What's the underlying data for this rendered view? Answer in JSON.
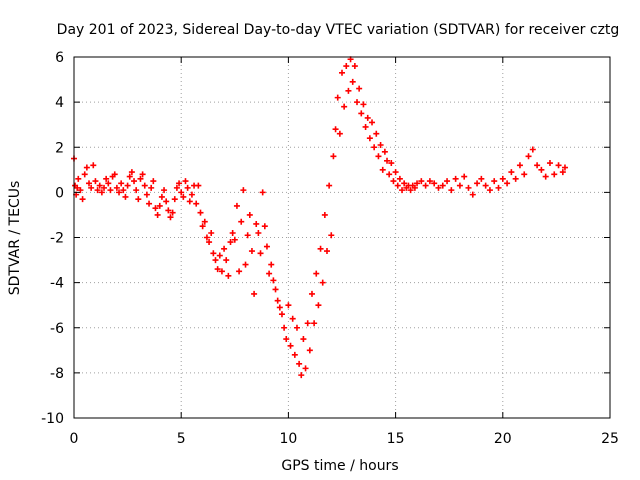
{
  "chart_data": {
    "type": "scatter",
    "title": "Day 201 of 2023, Sidereal Day-to-day VTEC variation (SDTVAR) for receiver cztg",
    "xlabel": "GPS time / hours",
    "ylabel": "SDTVAR / TECUs",
    "xlim": [
      0,
      25
    ],
    "ylim": [
      -10,
      6
    ],
    "xticks": [
      0,
      5,
      10,
      15,
      20,
      25
    ],
    "yticks": [
      -10,
      -8,
      -6,
      -4,
      -2,
      0,
      2,
      4,
      6
    ],
    "xtick_labels": [
      "0",
      "5",
      "10",
      "15",
      "20",
      "25"
    ],
    "ytick_labels": [
      "-10",
      "-8",
      "-6",
      "-4",
      "-2",
      "0",
      "2",
      "4",
      "6"
    ],
    "grid": true,
    "legend": "none",
    "marker": "plus",
    "color": "#ff0000",
    "series": [
      {
        "name": "SDTVAR",
        "points": [
          [
            0,
            1.5
          ],
          [
            0.05,
            0.3
          ],
          [
            0.1,
            -0.1
          ],
          [
            0.15,
            0.2
          ],
          [
            0.2,
            0.6
          ],
          [
            0.3,
            0.1
          ],
          [
            0.4,
            -0.3
          ],
          [
            0.5,
            0.8
          ],
          [
            0.6,
            1.1
          ],
          [
            0.7,
            0.4
          ],
          [
            0.8,
            0.2
          ],
          [
            0.9,
            1.2
          ],
          [
            1.0,
            0.5
          ],
          [
            1.1,
            0.1
          ],
          [
            1.2,
            0.3
          ],
          [
            1.3,
            0.0
          ],
          [
            1.4,
            0.2
          ],
          [
            1.5,
            0.6
          ],
          [
            1.6,
            0.4
          ],
          [
            1.7,
            0.1
          ],
          [
            1.8,
            0.7
          ],
          [
            1.9,
            0.8
          ],
          [
            2.0,
            0.2
          ],
          [
            2.1,
            0.0
          ],
          [
            2.2,
            0.4
          ],
          [
            2.3,
            0.1
          ],
          [
            2.4,
            -0.2
          ],
          [
            2.5,
            0.3
          ],
          [
            2.6,
            0.7
          ],
          [
            2.7,
            0.9
          ],
          [
            2.8,
            0.5
          ],
          [
            2.9,
            0.1
          ],
          [
            3.0,
            -0.3
          ],
          [
            3.1,
            0.6
          ],
          [
            3.2,
            0.8
          ],
          [
            3.3,
            0.3
          ],
          [
            3.4,
            -0.1
          ],
          [
            3.5,
            -0.5
          ],
          [
            3.6,
            0.2
          ],
          [
            3.7,
            0.5
          ],
          [
            3.8,
            -0.7
          ],
          [
            3.9,
            -1.0
          ],
          [
            4.0,
            -0.6
          ],
          [
            4.1,
            -0.2
          ],
          [
            4.2,
            0.1
          ],
          [
            4.3,
            -0.4
          ],
          [
            4.4,
            -0.8
          ],
          [
            4.5,
            -1.1
          ],
          [
            4.6,
            -0.9
          ],
          [
            4.7,
            -0.3
          ],
          [
            4.8,
            0.2
          ],
          [
            4.9,
            0.4
          ],
          [
            5.0,
            0.0
          ],
          [
            5.1,
            -0.2
          ],
          [
            5.2,
            0.5
          ],
          [
            5.3,
            0.2
          ],
          [
            5.4,
            -0.4
          ],
          [
            5.5,
            -0.1
          ],
          [
            5.6,
            0.3
          ],
          [
            5.7,
            -0.5
          ],
          [
            5.8,
            0.3
          ],
          [
            5.9,
            -0.9
          ],
          [
            6.0,
            -1.5
          ],
          [
            6.1,
            -1.3
          ],
          [
            6.2,
            -2.0
          ],
          [
            6.3,
            -2.2
          ],
          [
            6.4,
            -1.8
          ],
          [
            6.5,
            -2.7
          ],
          [
            6.6,
            -3.0
          ],
          [
            6.7,
            -3.4
          ],
          [
            6.8,
            -2.8
          ],
          [
            6.9,
            -3.5
          ],
          [
            7.0,
            -2.5
          ],
          [
            7.1,
            -3.0
          ],
          [
            7.2,
            -3.7
          ],
          [
            7.3,
            -2.2
          ],
          [
            7.4,
            -1.8
          ],
          [
            7.5,
            -2.1
          ],
          [
            7.6,
            -0.6
          ],
          [
            7.7,
            -3.5
          ],
          [
            7.8,
            -1.3
          ],
          [
            7.9,
            0.1
          ],
          [
            8.0,
            -3.2
          ],
          [
            8.1,
            -1.9
          ],
          [
            8.2,
            -1.0
          ],
          [
            8.3,
            -2.6
          ],
          [
            8.4,
            -4.5
          ],
          [
            8.5,
            -1.4
          ],
          [
            8.6,
            -1.8
          ],
          [
            8.7,
            -2.7
          ],
          [
            8.8,
            0.0
          ],
          [
            8.9,
            -1.5
          ],
          [
            9.0,
            -2.4
          ],
          [
            9.1,
            -3.6
          ],
          [
            9.2,
            -3.2
          ],
          [
            9.3,
            -3.9
          ],
          [
            9.4,
            -4.3
          ],
          [
            9.5,
            -4.8
          ],
          [
            9.6,
            -5.1
          ],
          [
            9.7,
            -5.4
          ],
          [
            9.8,
            -6.0
          ],
          [
            9.9,
            -6.5
          ],
          [
            10.0,
            -5.0
          ],
          [
            10.1,
            -6.8
          ],
          [
            10.2,
            -5.6
          ],
          [
            10.3,
            -7.2
          ],
          [
            10.4,
            -6.0
          ],
          [
            10.5,
            -7.6
          ],
          [
            10.6,
            -8.1
          ],
          [
            10.7,
            -6.5
          ],
          [
            10.8,
            -7.8
          ],
          [
            10.9,
            -5.8
          ],
          [
            11.0,
            -7.0
          ],
          [
            11.1,
            -4.5
          ],
          [
            11.2,
            -5.8
          ],
          [
            11.3,
            -3.6
          ],
          [
            11.4,
            -5.0
          ],
          [
            11.5,
            -2.5
          ],
          [
            11.6,
            -4.0
          ],
          [
            11.7,
            -1.0
          ],
          [
            11.8,
            -2.6
          ],
          [
            11.9,
            0.3
          ],
          [
            12.0,
            -1.9
          ],
          [
            12.1,
            1.6
          ],
          [
            12.2,
            2.8
          ],
          [
            12.3,
            4.2
          ],
          [
            12.4,
            2.6
          ],
          [
            12.5,
            5.3
          ],
          [
            12.6,
            3.8
          ],
          [
            12.7,
            5.6
          ],
          [
            12.8,
            4.5
          ],
          [
            12.9,
            5.9
          ],
          [
            13.0,
            4.9
          ],
          [
            13.1,
            5.6
          ],
          [
            13.2,
            4.0
          ],
          [
            13.3,
            4.6
          ],
          [
            13.4,
            3.5
          ],
          [
            13.5,
            3.9
          ],
          [
            13.6,
            2.9
          ],
          [
            13.7,
            3.3
          ],
          [
            13.8,
            2.4
          ],
          [
            13.9,
            3.1
          ],
          [
            14.0,
            2.0
          ],
          [
            14.1,
            2.6
          ],
          [
            14.2,
            1.6
          ],
          [
            14.3,
            2.1
          ],
          [
            14.4,
            1.0
          ],
          [
            14.5,
            1.8
          ],
          [
            14.6,
            1.4
          ],
          [
            14.7,
            0.8
          ],
          [
            14.8,
            1.3
          ],
          [
            14.9,
            0.5
          ],
          [
            15.0,
            0.9
          ],
          [
            15.1,
            0.3
          ],
          [
            15.2,
            0.6
          ],
          [
            15.3,
            0.1
          ],
          [
            15.4,
            0.4
          ],
          [
            15.5,
            0.2
          ],
          [
            15.6,
            0.3
          ],
          [
            15.7,
            0.1
          ],
          [
            15.8,
            0.3
          ],
          [
            15.9,
            0.2
          ],
          [
            16.0,
            0.4
          ],
          [
            16.2,
            0.5
          ],
          [
            16.4,
            0.3
          ],
          [
            16.6,
            0.5
          ],
          [
            16.8,
            0.4
          ],
          [
            17.0,
            0.2
          ],
          [
            17.2,
            0.3
          ],
          [
            17.4,
            0.5
          ],
          [
            17.6,
            0.1
          ],
          [
            17.8,
            0.6
          ],
          [
            18.0,
            0.3
          ],
          [
            18.2,
            0.7
          ],
          [
            18.4,
            0.2
          ],
          [
            18.6,
            -0.1
          ],
          [
            18.8,
            0.4
          ],
          [
            19.0,
            0.6
          ],
          [
            19.2,
            0.3
          ],
          [
            19.4,
            0.1
          ],
          [
            19.6,
            0.5
          ],
          [
            19.8,
            0.2
          ],
          [
            20.0,
            0.6
          ],
          [
            20.2,
            0.4
          ],
          [
            20.4,
            0.9
          ],
          [
            20.6,
            0.6
          ],
          [
            20.8,
            1.2
          ],
          [
            21.0,
            0.8
          ],
          [
            21.2,
            1.6
          ],
          [
            21.4,
            1.9
          ],
          [
            21.6,
            1.2
          ],
          [
            21.8,
            1.0
          ],
          [
            22.0,
            0.7
          ],
          [
            22.2,
            1.3
          ],
          [
            22.4,
            0.8
          ],
          [
            22.6,
            1.2
          ],
          [
            22.8,
            0.9
          ],
          [
            22.9,
            1.1
          ]
        ]
      }
    ]
  }
}
